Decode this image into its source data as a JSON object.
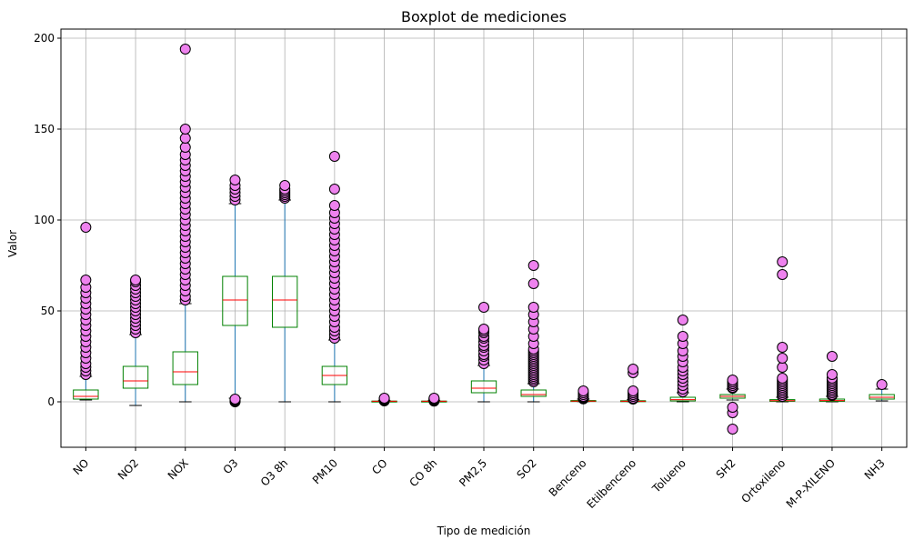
{
  "chart_data": {
    "type": "boxplot",
    "title": "Boxplot de mediciones",
    "xlabel": "Tipo de medición",
    "ylabel": "Valor",
    "ylim": [
      -25,
      205
    ],
    "yticks": [
      0,
      50,
      100,
      150,
      200
    ],
    "grid": true,
    "legend": "none",
    "colors": {
      "box": "#008000",
      "median": "#ff0000",
      "whisker": "#1f77b4",
      "cap": "#000000",
      "flier_fill": "#ee82ee",
      "flier_edge": "#000000",
      "grid": "#b0b0b0"
    },
    "categories": [
      "NO",
      "NO2",
      "NOX",
      "O3",
      "O3 8h",
      "PM10",
      "CO",
      "CO 8h",
      "PM2,5",
      "SO2",
      "Benceno",
      "Etilbenceno",
      "Tolueno",
      "SH2",
      "Ortoxileno",
      "M-P-XILENO",
      "NH3"
    ],
    "boxes": [
      {
        "category": "NO",
        "whislo": 1,
        "q1": 1.5,
        "med": 3,
        "q3": 6.5,
        "whishi": 14,
        "fliers": [
          15,
          17,
          19,
          21,
          24,
          27,
          30,
          33,
          36,
          39,
          42,
          45,
          48,
          51,
          54,
          57,
          60,
          63,
          67,
          96
        ]
      },
      {
        "category": "NO2",
        "whislo": -2,
        "q1": 7.5,
        "med": 11.5,
        "q3": 19.5,
        "whishi": 37,
        "fliers": [
          38,
          40,
          42,
          44,
          46,
          48,
          50,
          52,
          54,
          56,
          58,
          60,
          62,
          64,
          66,
          67
        ]
      },
      {
        "category": "NOX",
        "whislo": 0,
        "q1": 9.5,
        "med": 16.5,
        "q3": 27.5,
        "whishi": 54,
        "fliers": [
          56,
          58,
          61,
          64,
          67,
          70,
          73,
          76,
          79,
          82,
          85,
          88,
          91,
          94,
          97,
          100,
          103,
          106,
          109,
          112,
          115,
          118,
          121,
          124,
          127,
          130,
          133,
          136,
          140,
          145,
          150,
          194
        ]
      },
      {
        "category": "O3",
        "whislo": 2,
        "q1": 42,
        "med": 56,
        "q3": 69,
        "whishi": 109,
        "fliers": [
          0,
          0.5,
          1,
          1.5,
          111,
          113,
          115,
          117,
          119,
          122
        ]
      },
      {
        "category": "O3 8h",
        "whislo": 0,
        "q1": 41,
        "med": 56,
        "q3": 69,
        "whishi": 111,
        "fliers": [
          112,
          113,
          114,
          115,
          116,
          117,
          119
        ]
      },
      {
        "category": "PM10",
        "whislo": 0,
        "q1": 9.5,
        "med": 14.5,
        "q3": 19.5,
        "whishi": 34,
        "fliers": [
          35,
          37,
          39,
          41,
          44,
          47,
          50,
          53,
          56,
          59,
          62,
          65,
          68,
          71,
          74,
          77,
          80,
          83,
          86,
          89,
          92,
          95,
          98,
          101,
          104,
          108,
          117,
          135
        ]
      },
      {
        "category": "CO",
        "whislo": 0.1,
        "q1": 0.2,
        "med": 0.3,
        "q3": 0.4,
        "whishi": 0.7,
        "fliers": [
          0.5,
          0.8,
          1,
          1.3,
          1.6,
          2
        ]
      },
      {
        "category": "CO 8h",
        "whislo": 0.1,
        "q1": 0.2,
        "med": 0.3,
        "q3": 0.4,
        "whishi": 0.7,
        "fliers": [
          0.4,
          0.8,
          1,
          1.3,
          1.6,
          2
        ]
      },
      {
        "category": "PM2,5",
        "whislo": 0,
        "q1": 5,
        "med": 7.5,
        "q3": 11.5,
        "whishi": 20,
        "fliers": [
          21,
          23,
          25,
          26,
          28,
          30,
          31,
          33,
          35,
          36,
          38,
          39,
          40,
          52
        ]
      },
      {
        "category": "SO2",
        "whislo": 0,
        "q1": 3,
        "med": 4,
        "q3": 6.5,
        "whishi": 10,
        "fliers": [
          11,
          12,
          13,
          14,
          15,
          16,
          17,
          18,
          19,
          20,
          21,
          22,
          23,
          24,
          25,
          26,
          27,
          28,
          29,
          32,
          36,
          40,
          44,
          48,
          52,
          65,
          75
        ]
      },
      {
        "category": "Benceno",
        "whislo": 0.1,
        "q1": 0.2,
        "med": 0.4,
        "q3": 0.7,
        "whishi": 1.5,
        "fliers": [
          1.6,
          2,
          2.5,
          3,
          4,
          5,
          6
        ]
      },
      {
        "category": "Etilbenceno",
        "whislo": 0,
        "q1": 0.1,
        "med": 0.3,
        "q3": 0.6,
        "whishi": 1.2,
        "fliers": [
          1.5,
          2,
          3,
          4,
          5,
          6,
          16,
          18
        ]
      },
      {
        "category": "Tolueno",
        "whislo": 0,
        "q1": 0.5,
        "med": 1.2,
        "q3": 2.5,
        "whishi": 5,
        "fliers": [
          5.5,
          7,
          9,
          11,
          13,
          15,
          17,
          19,
          22,
          25,
          28,
          32,
          36,
          45
        ]
      },
      {
        "category": "SH2",
        "whislo": 1,
        "q1": 2,
        "med": 3,
        "q3": 4,
        "whishi": 7,
        "fliers": [
          -15,
          -6,
          -3,
          7.5,
          8,
          9,
          10,
          11,
          12
        ]
      },
      {
        "category": "Ortoxileno",
        "whislo": 0,
        "q1": 0.3,
        "med": 0.6,
        "q3": 1.2,
        "whishi": 2.5,
        "fliers": [
          3,
          4,
          5,
          6,
          7,
          8,
          9,
          10,
          11,
          12,
          13,
          19,
          24,
          30,
          70,
          77
        ]
      },
      {
        "category": "M-P-XILENO",
        "whislo": 0,
        "q1": 0.3,
        "med": 0.7,
        "q3": 1.5,
        "whishi": 3,
        "fliers": [
          3.5,
          4,
          5,
          6,
          7,
          8,
          9,
          10,
          11,
          12,
          13,
          15,
          25
        ]
      },
      {
        "category": "NH3",
        "whislo": 0.5,
        "q1": 1.5,
        "med": 2.5,
        "q3": 4,
        "whishi": 7,
        "fliers": [
          9.5
        ]
      }
    ]
  }
}
